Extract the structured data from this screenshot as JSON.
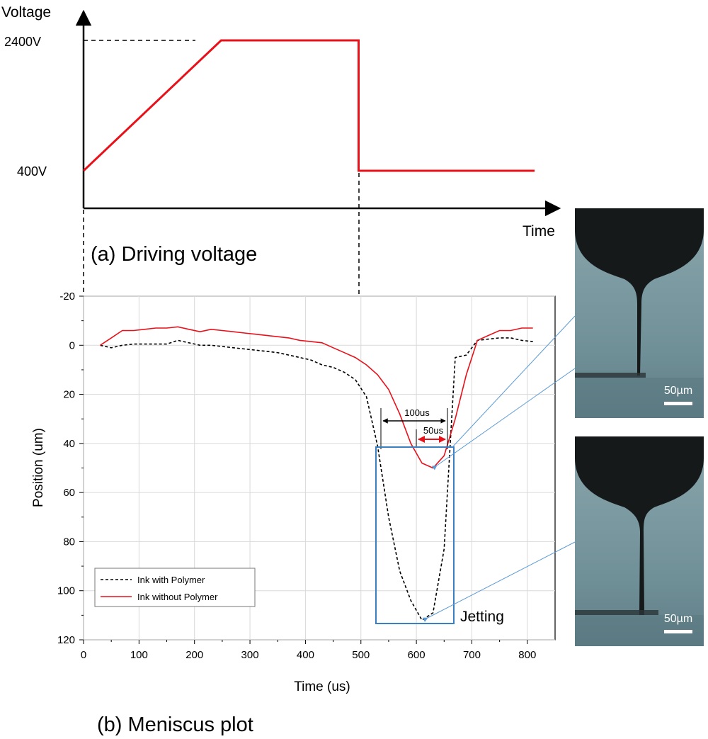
{
  "voltage_panel": {
    "ylabel": "Voltage",
    "xlabel": "Time",
    "caption": "(a) Driving voltage",
    "tick_high": "2400V",
    "tick_low": "400V",
    "line_color": "#e8111a"
  },
  "meniscus_panel": {
    "caption": "(b) Meniscus plot",
    "annotation_100": "100us",
    "annotation_50": "50us",
    "jetting_label": "Jetting",
    "box_color": "#3a7fc1"
  },
  "micrographs": {
    "top_scale": "50µm",
    "bottom_scale": "50µm"
  },
  "chart_data": [
    {
      "type": "line",
      "title": "(a) Driving voltage",
      "xlabel": "Time",
      "ylabel": "Voltage",
      "yticks": [
        "2400V",
        "400V"
      ],
      "series": [
        {
          "x": [
            0,
            0.25,
            0.5,
            0.5,
            0.82
          ],
          "y": [
            400,
            2400,
            2400,
            400,
            400
          ]
        }
      ]
    },
    {
      "type": "line",
      "title": "(b) Meniscus plot",
      "xlabel": "Time (us)",
      "ylabel": "Position (um)",
      "xlim": [
        0,
        850
      ],
      "ylim": [
        120,
        -20
      ],
      "y_inverted": true,
      "xticks": [
        0,
        100,
        200,
        300,
        400,
        500,
        600,
        700,
        800
      ],
      "yticks": [
        -20,
        0,
        20,
        40,
        60,
        80,
        100,
        120
      ],
      "grid": true,
      "legend_position": "bottom-left",
      "series": [
        {
          "name": "Ink with Polymer",
          "color": "#000000",
          "style": "dashed",
          "x": [
            30,
            50,
            70,
            90,
            110,
            130,
            150,
            170,
            190,
            210,
            230,
            250,
            270,
            290,
            310,
            330,
            350,
            370,
            390,
            410,
            430,
            450,
            470,
            490,
            510,
            530,
            550,
            570,
            590,
            610,
            630,
            650,
            670,
            690,
            710,
            730,
            750,
            770,
            790,
            810
          ],
          "values": [
            0,
            1,
            0,
            -0.5,
            -0.5,
            -0.5,
            -0.5,
            -2,
            -1,
            0,
            0,
            0.5,
            1,
            1.5,
            2,
            2.5,
            3,
            4,
            5,
            6,
            8,
            9,
            11,
            14,
            21,
            41,
            70,
            92,
            104,
            112,
            109,
            83,
            5,
            4,
            -2,
            -2.5,
            -3,
            -3,
            -2,
            -1.5
          ]
        },
        {
          "name": "Ink without Polymer",
          "color": "#e8111a",
          "style": "solid",
          "x": [
            30,
            50,
            70,
            90,
            110,
            130,
            150,
            170,
            190,
            210,
            230,
            250,
            270,
            290,
            310,
            330,
            350,
            370,
            390,
            410,
            430,
            450,
            470,
            490,
            510,
            530,
            550,
            570,
            590,
            610,
            630,
            650,
            670,
            690,
            710,
            730,
            750,
            770,
            790,
            810
          ],
          "values": [
            0,
            -3,
            -6,
            -6,
            -6.5,
            -7,
            -7,
            -7.5,
            -6.5,
            -5.5,
            -6.5,
            -6,
            -5.5,
            -5,
            -4.5,
            -4,
            -3.5,
            -3,
            -2,
            -1.5,
            -1,
            1,
            3,
            5,
            8,
            12,
            18,
            28,
            40,
            48,
            50,
            45,
            30,
            12,
            -2,
            -4,
            -6,
            -6,
            -7,
            -7
          ]
        }
      ]
    }
  ]
}
